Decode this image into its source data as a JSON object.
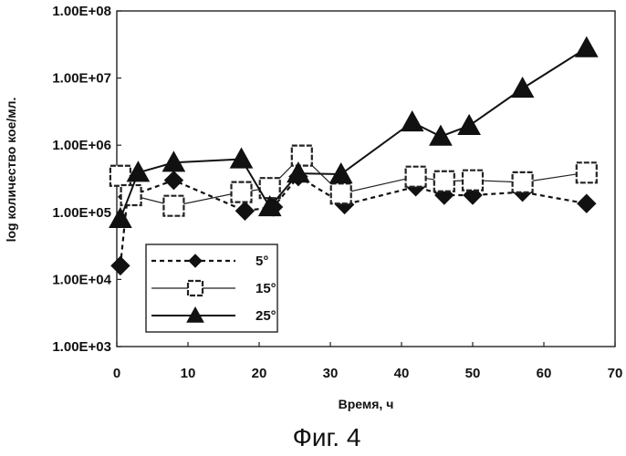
{
  "caption": "Фиг. 4",
  "chart_data": {
    "type": "line",
    "xlabel": "Время, ч",
    "ylabel": "log количество кое/мл.",
    "xlim": [
      0,
      70
    ],
    "ylim": [
      1000,
      100000000
    ],
    "y_scale": "log",
    "x_ticks": [
      "0",
      "10",
      "20",
      "30",
      "40",
      "50",
      "60",
      "70"
    ],
    "y_ticks": [
      "1.00E+03",
      "1.00E+04",
      "1.00E+05",
      "1.00E+06",
      "1.00E+07",
      "1.00E+08"
    ],
    "grid": false,
    "legend_position": "lower-left",
    "series": [
      {
        "name": "5°",
        "marker": "diamond",
        "line_style": "dashed",
        "color": "#111111",
        "points": [
          [
            0.5,
            16000
          ],
          [
            1.5,
            170000
          ],
          [
            8,
            300000
          ],
          [
            18,
            105000
          ],
          [
            22,
            120000
          ],
          [
            25.5,
            340000
          ],
          [
            32,
            130000
          ],
          [
            42,
            240000
          ],
          [
            46,
            180000
          ],
          [
            50,
            180000
          ],
          [
            57,
            200000
          ],
          [
            66,
            135000
          ]
        ]
      },
      {
        "name": "15°",
        "marker": "square-open",
        "line_style": "solid-thin",
        "color": "#222222",
        "points": [
          [
            0.5,
            350000
          ],
          [
            2,
            180000
          ],
          [
            8,
            125000
          ],
          [
            17.5,
            200000
          ],
          [
            21.5,
            230000
          ],
          [
            26,
            700000
          ],
          [
            31.5,
            190000
          ],
          [
            42,
            340000
          ],
          [
            46,
            290000
          ],
          [
            50,
            300000
          ],
          [
            57,
            280000
          ],
          [
            66,
            390000
          ]
        ]
      },
      {
        "name": "25°",
        "marker": "triangle",
        "line_style": "solid",
        "color": "#111111",
        "points": [
          [
            0.5,
            80000
          ],
          [
            3,
            390000
          ],
          [
            8,
            550000
          ],
          [
            17.5,
            620000
          ],
          [
            21.5,
            120000
          ],
          [
            25.5,
            380000
          ],
          [
            31.5,
            370000
          ],
          [
            41.5,
            2200000
          ],
          [
            45.5,
            1350000
          ],
          [
            49.5,
            1950000
          ],
          [
            57,
            7000000
          ],
          [
            66,
            28000000
          ]
        ]
      }
    ]
  }
}
